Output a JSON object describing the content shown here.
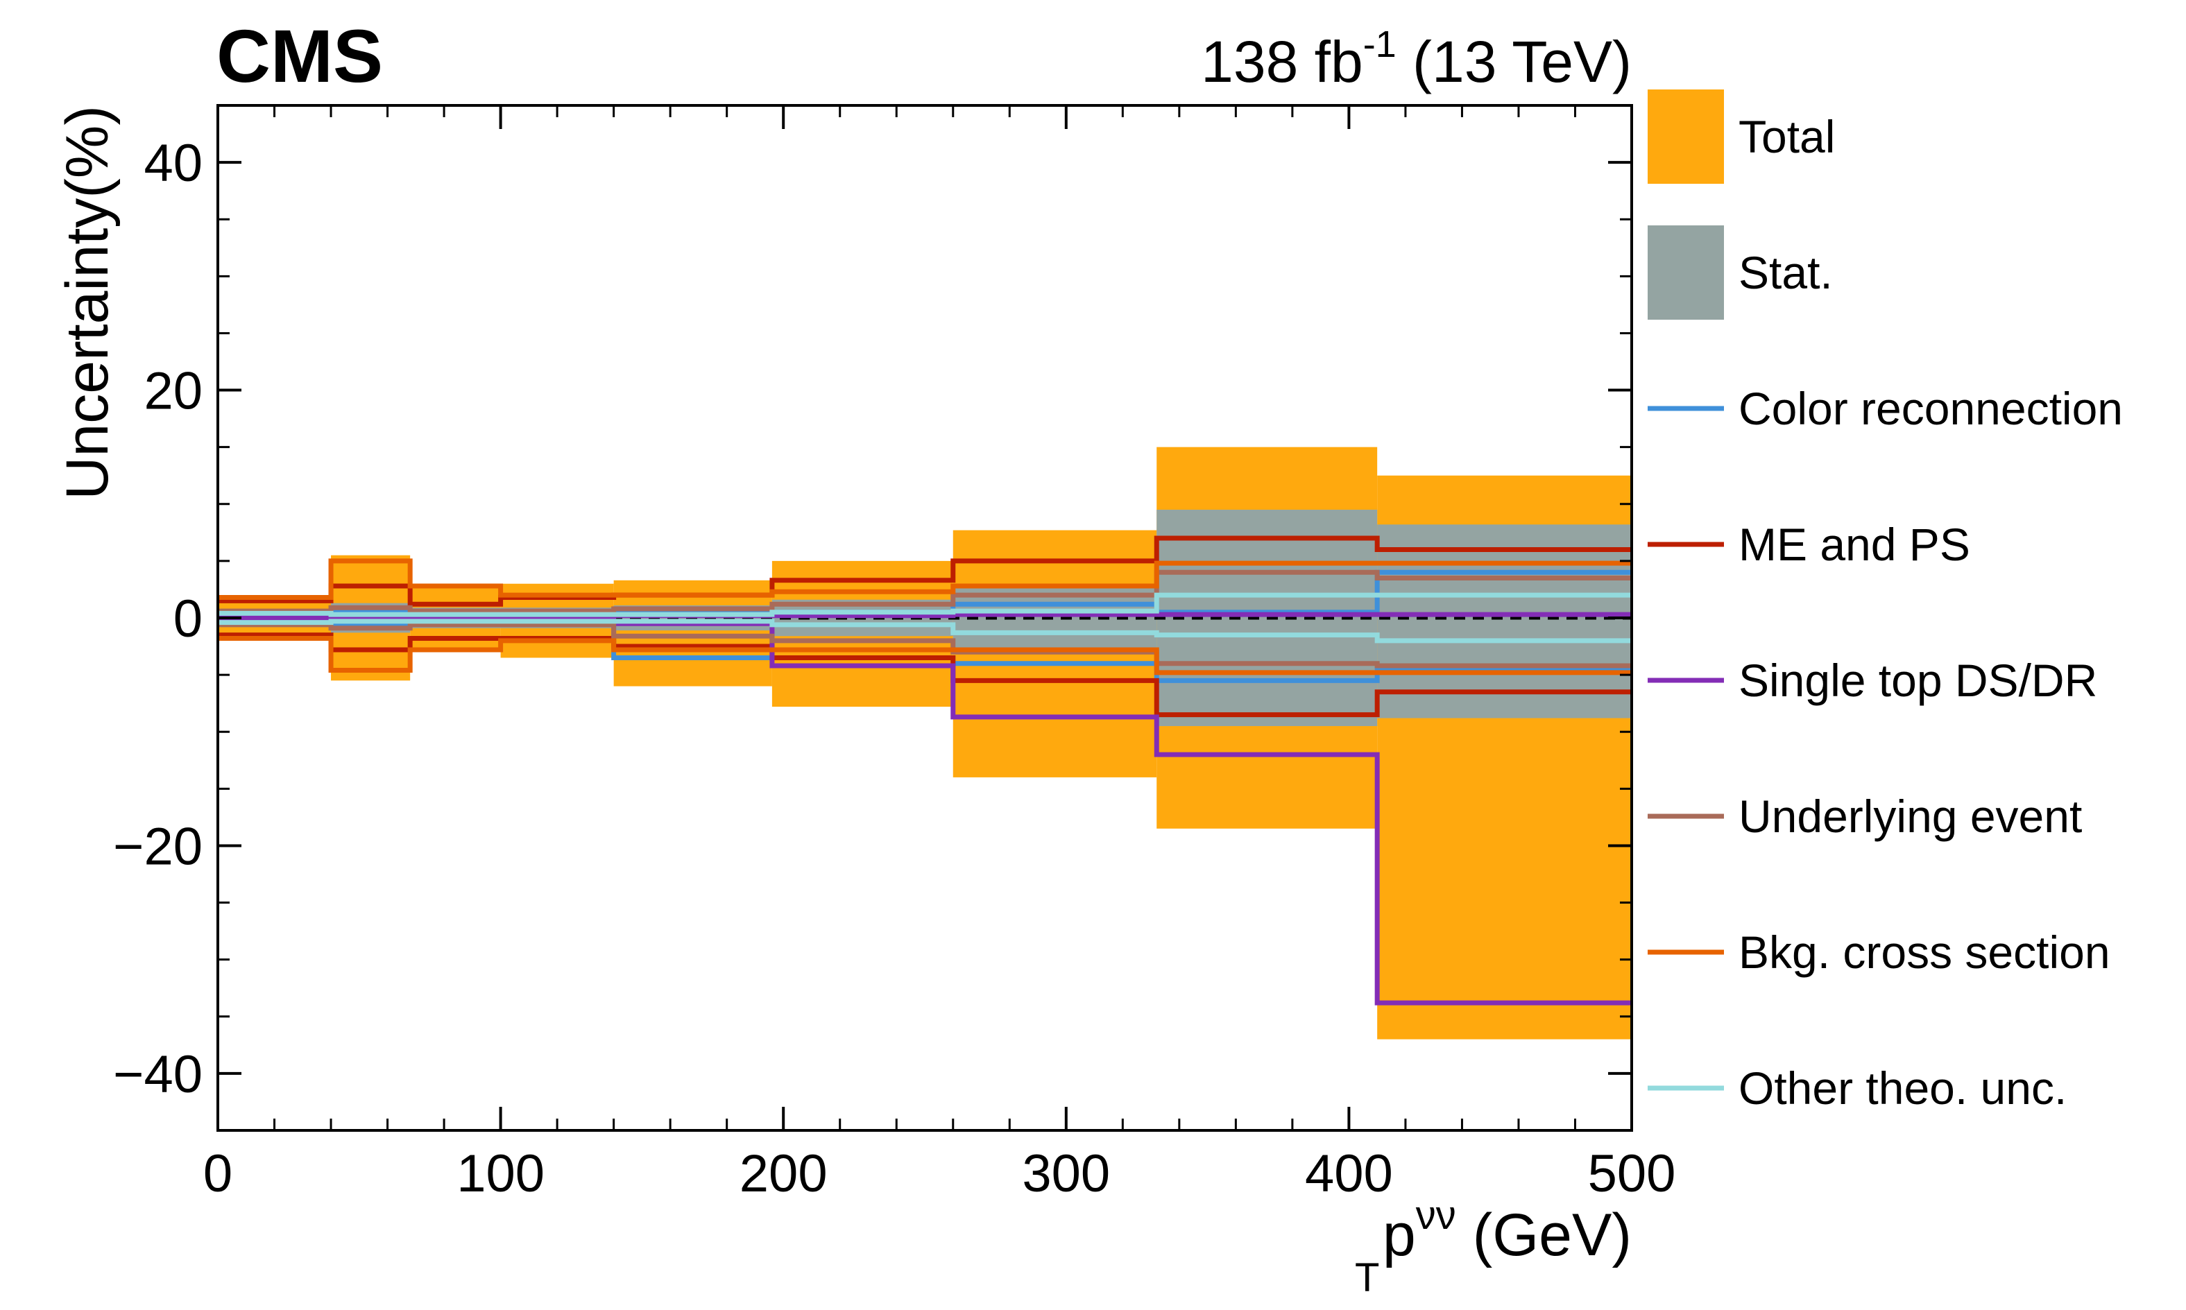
{
  "chart_data": {
    "type": "step",
    "experiment": "CMS",
    "luminosity": {
      "value": "138 fb",
      "exponent": "-1",
      "energy": "(13 TeV)"
    },
    "xlabel": {
      "base": "p",
      "sub": "T",
      "sup": "νν",
      "unit": "(GeV)"
    },
    "ylabel": "Uncertainty(%)",
    "xlim": [
      0,
      500
    ],
    "ylim": [
      -45,
      45
    ],
    "xticks": [
      0,
      100,
      200,
      300,
      400,
      500
    ],
    "xtick_labels": [
      "0",
      "100",
      "200",
      "300",
      "400",
      "500"
    ],
    "yticks": [
      -40,
      -20,
      0,
      20,
      40
    ],
    "ytick_labels": [
      "−40",
      "−20",
      "0",
      "20",
      "40"
    ],
    "bin_edges": [
      0,
      40,
      68,
      100,
      140,
      196,
      260,
      332,
      410,
      500
    ],
    "bands": [
      {
        "name": "Total",
        "color": "#ffa90e",
        "up": [
          2.0,
          5.5,
          3.0,
          3.0,
          3.3,
          5.0,
          7.7,
          15.0,
          12.5
        ],
        "down": [
          -2.0,
          -5.5,
          -3.0,
          -3.5,
          -6.0,
          -7.8,
          -14.0,
          -18.5,
          -37.0
        ]
      },
      {
        "name": "Stat.",
        "color": "#94a4a2",
        "up": [
          0.8,
          1.3,
          0.9,
          0.9,
          1.1,
          1.6,
          2.8,
          9.5,
          8.2
        ],
        "down": [
          -0.8,
          -1.3,
          -0.9,
          -0.9,
          -1.1,
          -1.6,
          -2.8,
          -9.5,
          -8.8
        ]
      }
    ],
    "series": [
      {
        "name": "Color reconnection",
        "color": "#3f90da",
        "up": [
          0.5,
          0.5,
          0.4,
          0.4,
          0.5,
          0.5,
          1.2,
          0.5,
          4.0
        ],
        "down": [
          -0.5,
          -0.5,
          -0.4,
          -0.4,
          -3.5,
          -3.5,
          -4.0,
          -5.5,
          -4.5
        ]
      },
      {
        "name": "ME and PS",
        "color": "#bd1f01",
        "up": [
          1.5,
          2.8,
          1.2,
          1.8,
          2.0,
          3.3,
          5.0,
          7.0,
          6.0
        ],
        "down": [
          -1.5,
          -2.8,
          -1.8,
          -1.8,
          -2.5,
          -3.5,
          -5.5,
          -8.5,
          -6.5
        ]
      },
      {
        "name": "Single top DS/DR",
        "color": "#832db6",
        "up": [
          0.2,
          0.2,
          0.2,
          0.2,
          0.2,
          0.2,
          0.3,
          0.3,
          0.3
        ],
        "down": [
          -0.2,
          -0.2,
          -0.2,
          -0.2,
          -0.5,
          -4.2,
          -8.7,
          -12.0,
          -33.8
        ]
      },
      {
        "name": "Underlying event",
        "color": "#a96b59",
        "up": [
          0.6,
          0.9,
          0.6,
          0.6,
          0.8,
          1.2,
          2.0,
          4.0,
          3.5
        ],
        "down": [
          -0.6,
          -0.9,
          -0.6,
          -0.6,
          -1.6,
          -2.0,
          -3.0,
          -4.0,
          -4.2
        ]
      },
      {
        "name": "Bkg. cross section",
        "color": "#e76300",
        "up": [
          1.8,
          5.0,
          2.8,
          2.0,
          2.0,
          2.3,
          2.8,
          4.8,
          4.8
        ],
        "down": [
          -1.8,
          -4.6,
          -2.8,
          -2.0,
          -2.8,
          -2.8,
          -2.8,
          -4.8,
          -4.8
        ]
      },
      {
        "name": "Other theo. unc.",
        "color": "#92dadd",
        "up": [
          0.4,
          0.3,
          0.3,
          0.3,
          0.3,
          0.5,
          0.6,
          2.0,
          2.0
        ],
        "down": [
          -0.4,
          -0.3,
          -0.3,
          -0.3,
          -0.3,
          -0.6,
          -1.3,
          -1.5,
          -2.0
        ]
      }
    ]
  }
}
